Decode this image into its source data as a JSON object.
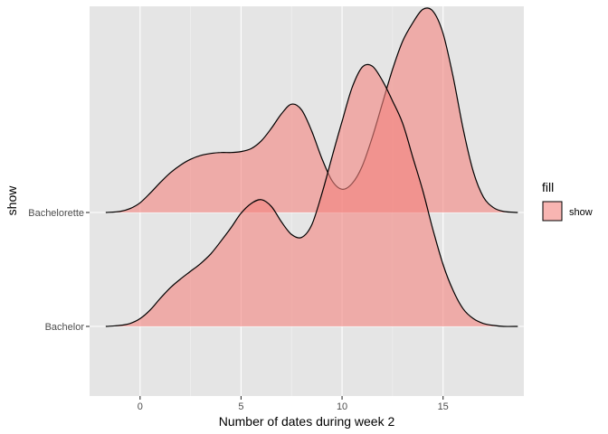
{
  "chart_data": {
    "type": "area",
    "subtype": "ridgeline-density",
    "xlabel": "Number of dates during week 2",
    "ylabel": "show",
    "xlim": [
      -2.5,
      19
    ],
    "x_ticks": [
      0,
      5,
      10,
      15
    ],
    "x_tick_labels": [
      "0",
      "5",
      "10",
      "15"
    ],
    "y_categories": [
      "Bachelor",
      "Bachelorette"
    ],
    "grid": true,
    "legend": {
      "title": "fill",
      "placement": "right",
      "entries": [
        "show"
      ]
    },
    "fill_color": "#F4847F",
    "fill_opacity": 0.6,
    "panel_background": "#E5E5E5",
    "series": [
      {
        "category": "Bachelorette",
        "x": [
          -1.7,
          -1,
          -0.5,
          0,
          0.5,
          1,
          1.5,
          2,
          2.5,
          3,
          3.5,
          4,
          4.5,
          5,
          5.5,
          6,
          6.5,
          7,
          7.5,
          8,
          8.5,
          9,
          9.5,
          10,
          10.5,
          11,
          11.5,
          12,
          12.5,
          13,
          13.5,
          14,
          14.5,
          15,
          15.5,
          16,
          16.5,
          17,
          17.5,
          18,
          18.7
        ],
        "density": [
          0.0,
          0.01,
          0.04,
          0.1,
          0.2,
          0.31,
          0.41,
          0.49,
          0.55,
          0.59,
          0.61,
          0.62,
          0.62,
          0.63,
          0.66,
          0.74,
          0.87,
          1.02,
          1.12,
          1.06,
          0.84,
          0.56,
          0.33,
          0.24,
          0.3,
          0.48,
          0.78,
          1.13,
          1.48,
          1.77,
          1.96,
          2.1,
          2.08,
          1.85,
          1.4,
          0.86,
          0.42,
          0.16,
          0.05,
          0.01,
          0.0
        ]
      },
      {
        "category": "Bachelor",
        "x": [
          -1.7,
          -1,
          -0.5,
          0,
          0.5,
          1,
          1.5,
          2,
          2.5,
          3,
          3.5,
          4,
          4.5,
          5,
          5.5,
          6,
          6.5,
          7,
          7.5,
          8,
          8.5,
          9,
          9.5,
          10,
          10.5,
          11,
          11.5,
          12,
          12.5,
          13,
          13.5,
          14,
          14.5,
          15,
          15.5,
          16,
          16.5,
          17,
          17.5,
          18,
          18.7
        ],
        "density": [
          0.0,
          0.01,
          0.03,
          0.08,
          0.17,
          0.29,
          0.4,
          0.49,
          0.57,
          0.65,
          0.75,
          0.88,
          1.02,
          1.17,
          1.27,
          1.31,
          1.24,
          1.08,
          0.95,
          0.92,
          1.05,
          1.37,
          1.75,
          2.12,
          2.47,
          2.68,
          2.69,
          2.54,
          2.33,
          2.1,
          1.75,
          1.4,
          1.0,
          0.64,
          0.37,
          0.18,
          0.08,
          0.03,
          0.01,
          0.0,
          0.0
        ]
      }
    ]
  }
}
